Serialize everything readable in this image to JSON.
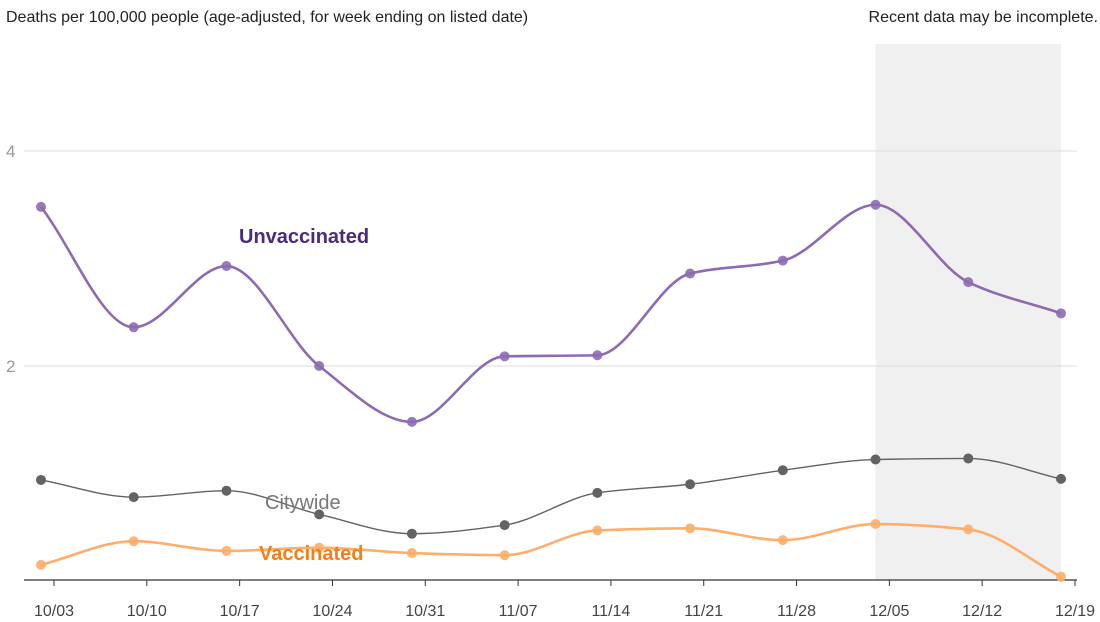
{
  "header": {
    "subtitle": "Deaths per 100,000 people (age-adjusted, for week ending on listed date)",
    "note": "Recent data may be incomplete."
  },
  "chart_data": {
    "type": "line",
    "x": [
      "10/03",
      "10/10",
      "10/17",
      "10/24",
      "10/31",
      "11/07",
      "11/14",
      "11/21",
      "11/28",
      "12/05",
      "12/12",
      "12/19"
    ],
    "y_ticks": [
      2,
      4
    ],
    "ylim": [
      0,
      5
    ],
    "grid": true,
    "incomplete_region": {
      "from": "12/05",
      "to": "12/19",
      "color": "#f0f0f0"
    },
    "series": [
      {
        "name": "Unvaccinated",
        "color": "#8c6bb1",
        "label_color": "#4b2a7b",
        "values": [
          3.48,
          2.36,
          2.93,
          2.0,
          1.48,
          2.09,
          2.1,
          2.86,
          2.98,
          3.5,
          2.78,
          2.49
        ]
      },
      {
        "name": "Citywide",
        "color": "#636363",
        "label_color": "#777777",
        "values": [
          0.94,
          0.78,
          0.84,
          0.62,
          0.44,
          0.52,
          0.82,
          0.9,
          1.03,
          1.13,
          1.14,
          0.95
        ]
      },
      {
        "name": "Vaccinated",
        "color": "#fdae6b",
        "label_color": "#f57f17",
        "values": [
          0.15,
          0.37,
          0.28,
          0.31,
          0.26,
          0.24,
          0.47,
          0.49,
          0.38,
          0.53,
          0.48,
          0.04
        ]
      }
    ]
  }
}
